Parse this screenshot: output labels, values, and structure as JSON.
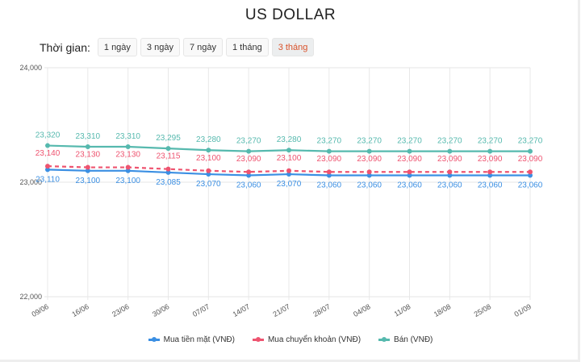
{
  "header": {
    "title": "US DOLLAR"
  },
  "range": {
    "label": "Thời gian:",
    "options": [
      "1 ngày",
      "3 ngày",
      "7 ngày",
      "1 tháng",
      "3 tháng"
    ],
    "selected": "3 tháng"
  },
  "chart_data": {
    "type": "line",
    "title": "US DOLLAR",
    "categories": [
      "09/06",
      "16/06",
      "23/06",
      "30/06",
      "07/07",
      "14/07",
      "21/07",
      "28/07",
      "04/08",
      "11/08",
      "18/08",
      "25/08",
      "01/09"
    ],
    "ylim": [
      22000,
      24000
    ],
    "yticks": [
      "22,000",
      "23,000",
      "24,000"
    ],
    "grid": true,
    "legend": "bottom",
    "series": [
      {
        "name": "Mua tiền mặt (VNĐ)",
        "color": "#3b8fe3",
        "dashed": false,
        "values": [
          23110,
          23100,
          23100,
          23085,
          23070,
          23060,
          23070,
          23060,
          23060,
          23060,
          23060,
          23060,
          23060
        ]
      },
      {
        "name": "Mua chuyển khoản (VNĐ)",
        "color": "#ee5470",
        "dashed": true,
        "values": [
          23140,
          23130,
          23130,
          23115,
          23100,
          23090,
          23100,
          23090,
          23090,
          23090,
          23090,
          23090,
          23090
        ]
      },
      {
        "name": "Bán (VNĐ)",
        "color": "#56b9ae",
        "dashed": false,
        "values": [
          23320,
          23310,
          23310,
          23295,
          23280,
          23270,
          23280,
          23270,
          23270,
          23270,
          23270,
          23270,
          23270
        ]
      }
    ]
  }
}
